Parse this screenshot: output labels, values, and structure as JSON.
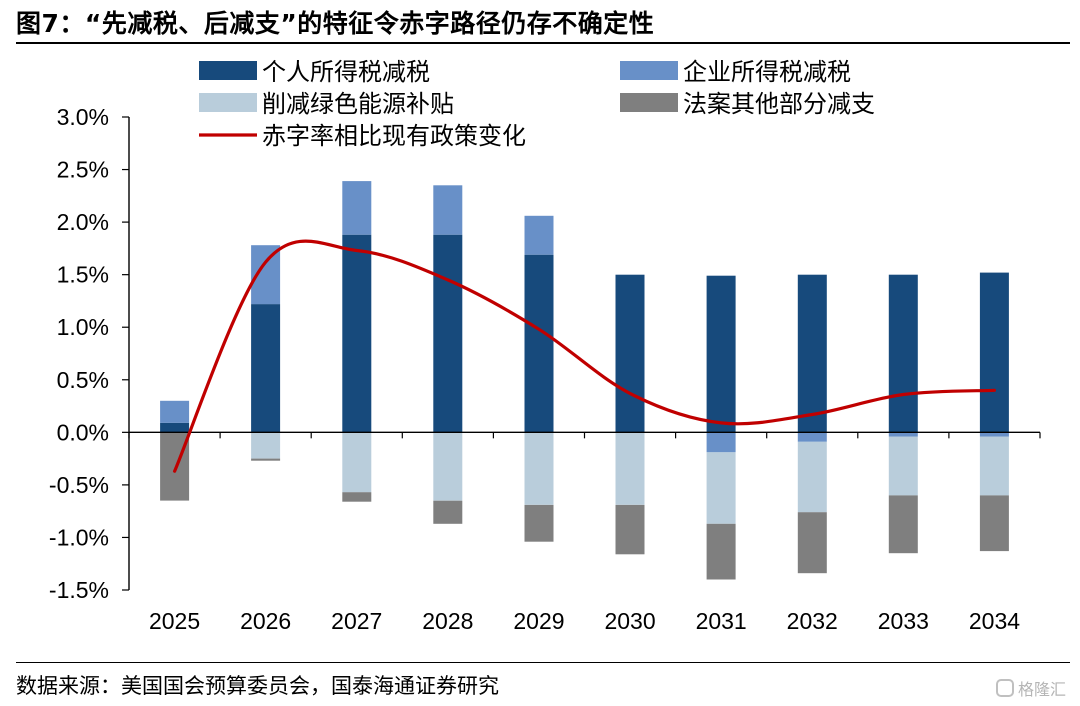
{
  "figure": {
    "title": "图7：“先减税、后减支”的特征令赤字路径仍存不确定性",
    "source": "数据来源：美国国会预算委员会，国泰海通证券研究",
    "watermark": "格隆汇"
  },
  "chart_data": {
    "type": "bar",
    "stacked": true,
    "categories": [
      "2025",
      "2026",
      "2027",
      "2028",
      "2029",
      "2030",
      "2031",
      "2032",
      "2033",
      "2034"
    ],
    "ylim": [
      -1.5,
      3.0
    ],
    "yticks": [
      3.0,
      2.5,
      2.0,
      1.5,
      1.0,
      0.5,
      0.0,
      -0.5,
      -1.0,
      -1.5
    ],
    "ytick_labels": [
      "3.0%",
      "2.5%",
      "2.0%",
      "1.5%",
      "1.0%",
      "0.5%",
      "0.0%",
      "-0.5%",
      "-1.0%",
      "-1.5%"
    ],
    "legend_position": "top",
    "grid": false,
    "series": [
      {
        "name": "个人所得税减税",
        "kind": "bar",
        "color": "#174a7c",
        "values": [
          0.09,
          1.22,
          1.88,
          1.88,
          1.69,
          1.5,
          1.49,
          1.5,
          1.5,
          1.52
        ]
      },
      {
        "name": "企业所得税减税",
        "kind": "bar",
        "color": "#6890c8",
        "values": [
          0.21,
          0.56,
          0.51,
          0.47,
          0.37,
          0.0,
          -0.19,
          -0.09,
          -0.04,
          -0.04
        ]
      },
      {
        "name": "削减绿色能源补贴",
        "kind": "bar",
        "color": "#b9cddb",
        "values": [
          0.0,
          -0.25,
          -0.57,
          -0.65,
          -0.69,
          -0.69,
          -0.68,
          -0.67,
          -0.56,
          -0.56
        ]
      },
      {
        "name": "法案其他部分减支",
        "kind": "bar",
        "color": "#7f7f7f",
        "values": [
          -0.65,
          -0.02,
          -0.09,
          -0.22,
          -0.35,
          -0.47,
          -0.53,
          -0.58,
          -0.55,
          -0.53
        ]
      },
      {
        "name": "赤字率相比现有政策变化",
        "kind": "line",
        "color": "#c00000",
        "values": [
          -0.37,
          1.62,
          1.73,
          1.45,
          0.98,
          0.37,
          0.09,
          0.17,
          0.36,
          0.4
        ]
      }
    ]
  }
}
